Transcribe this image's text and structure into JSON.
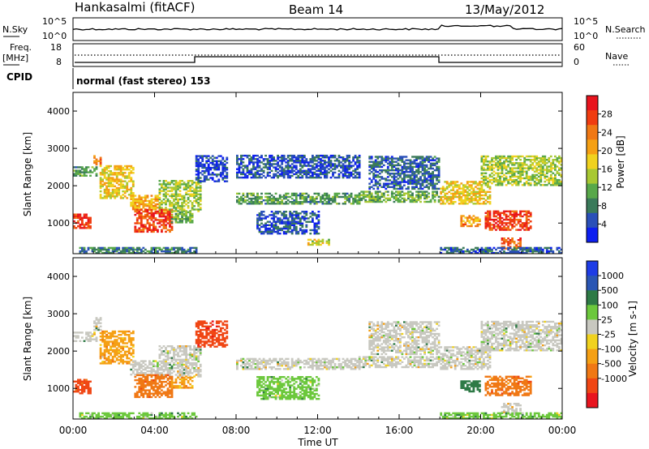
{
  "header": {
    "station": "Hankasalmi (fitACF)",
    "beam": "Beam 14",
    "date": "13/May/2012"
  },
  "noise_panel": {
    "left_label": "N.Sky",
    "left_ticks": [
      "10^5",
      "10^0"
    ],
    "right_label": "N.Search",
    "right_ticks": [
      "10^5",
      "10^0"
    ]
  },
  "freq_panel": {
    "left_label_line1": "Freq.",
    "left_label_line2": "[MHz]",
    "left_ticks": [
      "18",
      "8"
    ],
    "right_label": "Nave",
    "right_ticks": [
      "60",
      "0"
    ]
  },
  "cpid": {
    "label": "CPID",
    "mode_text": "normal (fast stereo) 153"
  },
  "x_axis": {
    "ticks": [
      "00:00",
      "04:00",
      "08:00",
      "12:00",
      "16:00",
      "20:00",
      "00:00"
    ],
    "label": "Time UT"
  },
  "chart_data": [
    {
      "type": "heatmap",
      "title": "Power",
      "xlabel": "Time UT",
      "ylabel": "Slant Range [km]",
      "xlim_hours": [
        0,
        24
      ],
      "ylim": [
        180,
        4500
      ],
      "y_ticks": [
        1000,
        2000,
        3000,
        4000
      ],
      "colorbar": {
        "label": "Power [dB]",
        "ticks": [
          "4",
          "8",
          "12",
          "16",
          "20",
          "24",
          "28"
        ],
        "colors": [
          "#0d1ff0",
          "#2a50b8",
          "#3a7a5a",
          "#58a84a",
          "#a8c832",
          "#f0d21e",
          "#f5a014",
          "#f07814",
          "#f03c10",
          "#e8141e"
        ]
      },
      "echo_regions": [
        {
          "t": [
            0.0,
            1.2
          ],
          "r": [
            2250,
            2500
          ],
          "v": 10
        },
        {
          "t": [
            1.0,
            1.4
          ],
          "r": [
            2550,
            2800
          ],
          "v": 22
        },
        {
          "t": [
            1.3,
            3.0
          ],
          "r": [
            1650,
            2550
          ],
          "v": 18
        },
        {
          "t": [
            2.8,
            4.2
          ],
          "r": [
            1350,
            1750
          ],
          "v": 20
        },
        {
          "t": [
            4.2,
            6.2
          ],
          "r": [
            1300,
            2150
          ],
          "v": 14
        },
        {
          "t": [
            0.0,
            0.8
          ],
          "r": [
            850,
            1250
          ],
          "v": 28
        },
        {
          "t": [
            3.0,
            4.8
          ],
          "r": [
            750,
            1350
          ],
          "v": 27
        },
        {
          "t": [
            4.8,
            5.8
          ],
          "r": [
            1000,
            1300
          ],
          "v": 12
        },
        {
          "t": [
            0.3,
            6.0
          ],
          "r": [
            180,
            350
          ],
          "v": 8
        },
        {
          "t": [
            6.0,
            7.5
          ],
          "r": [
            2100,
            2800
          ],
          "v": 4
        },
        {
          "t": [
            8.0,
            14.0
          ],
          "r": [
            1500,
            1800
          ],
          "v": 10
        },
        {
          "t": [
            8.0,
            14.0
          ],
          "r": [
            2200,
            2800
          ],
          "v": 5
        },
        {
          "t": [
            9.0,
            12.0
          ],
          "r": [
            700,
            1300
          ],
          "v": 5
        },
        {
          "t": [
            14.0,
            18.0
          ],
          "r": [
            1550,
            1850
          ],
          "v": 12
        },
        {
          "t": [
            14.5,
            18.0
          ],
          "r": [
            1900,
            2800
          ],
          "v": 6
        },
        {
          "t": [
            11.5,
            12.5
          ],
          "r": [
            400,
            550
          ],
          "v": 16
        },
        {
          "t": [
            18.0,
            20.5
          ],
          "r": [
            1500,
            2100
          ],
          "v": 18
        },
        {
          "t": [
            19.0,
            20.0
          ],
          "r": [
            900,
            1200
          ],
          "v": 22
        },
        {
          "t": [
            20.0,
            24.0
          ],
          "r": [
            2000,
            2800
          ],
          "v": 14
        },
        {
          "t": [
            20.2,
            22.5
          ],
          "r": [
            800,
            1300
          ],
          "v": 28
        },
        {
          "t": [
            21.0,
            22.0
          ],
          "r": [
            300,
            600
          ],
          "v": 26
        },
        {
          "t": [
            18.0,
            24.0
          ],
          "r": [
            180,
            350
          ],
          "v": 6
        }
      ]
    },
    {
      "type": "heatmap",
      "title": "Velocity",
      "xlabel": "Time UT",
      "ylabel": "Slant Range [km]",
      "xlim_hours": [
        0,
        24
      ],
      "ylim": [
        180,
        4500
      ],
      "y_ticks": [
        1000,
        2000,
        3000,
        4000
      ],
      "colorbar": {
        "label": "Velocity [m s-1]",
        "ticks": [
          "1000",
          "500",
          "100",
          "25",
          "-25",
          "-100",
          "-500",
          "-1000"
        ],
        "colors": [
          "#1e3ce6",
          "#2a56b4",
          "#2e7a46",
          "#6cc83c",
          "#c8c8c0",
          "#f0d21e",
          "#f5a014",
          "#f07814",
          "#f04614",
          "#e8141e"
        ]
      },
      "echo_regions": [
        {
          "t": [
            0.0,
            1.2
          ],
          "r": [
            2250,
            2500
          ],
          "v": 0
        },
        {
          "t": [
            1.0,
            1.4
          ],
          "r": [
            2550,
            2900
          ],
          "v": 0
        },
        {
          "t": [
            1.3,
            3.0
          ],
          "r": [
            1650,
            2550
          ],
          "v": -150
        },
        {
          "t": [
            2.8,
            4.2
          ],
          "r": [
            1350,
            1750
          ],
          "v": 0
        },
        {
          "t": [
            4.2,
            6.2
          ],
          "r": [
            1300,
            2150
          ],
          "v": 0
        },
        {
          "t": [
            0.0,
            0.8
          ],
          "r": [
            850,
            1250
          ],
          "v": -450
        },
        {
          "t": [
            3.0,
            4.8
          ],
          "r": [
            750,
            1350
          ],
          "v": -350
        },
        {
          "t": [
            4.8,
            5.8
          ],
          "r": [
            1000,
            1300
          ],
          "v": -150
        },
        {
          "t": [
            0.3,
            6.0
          ],
          "r": [
            180,
            350
          ],
          "v": 60
        },
        {
          "t": [
            6.0,
            7.5
          ],
          "r": [
            2100,
            2800
          ],
          "v": -600
        },
        {
          "t": [
            8.0,
            14.0
          ],
          "r": [
            1500,
            1800
          ],
          "v": 0
        },
        {
          "t": [
            9.0,
            12.0
          ],
          "r": [
            700,
            1300
          ],
          "v": 80
        },
        {
          "t": [
            14.0,
            18.0
          ],
          "r": [
            1550,
            1850
          ],
          "v": 0
        },
        {
          "t": [
            14.5,
            18.0
          ],
          "r": [
            1900,
            2800
          ],
          "v": 0
        },
        {
          "t": [
            18.0,
            20.5
          ],
          "r": [
            1500,
            2100
          ],
          "v": 0
        },
        {
          "t": [
            19.0,
            20.0
          ],
          "r": [
            900,
            1200
          ],
          "v": 200
        },
        {
          "t": [
            20.0,
            24.0
          ],
          "r": [
            2000,
            2800
          ],
          "v": 0
        },
        {
          "t": [
            20.2,
            22.5
          ],
          "r": [
            800,
            1300
          ],
          "v": -300
        },
        {
          "t": [
            21.0,
            22.0
          ],
          "r": [
            300,
            600
          ],
          "v": 0
        },
        {
          "t": [
            18.0,
            24.0
          ],
          "r": [
            180,
            350
          ],
          "v": 60
        }
      ]
    }
  ]
}
